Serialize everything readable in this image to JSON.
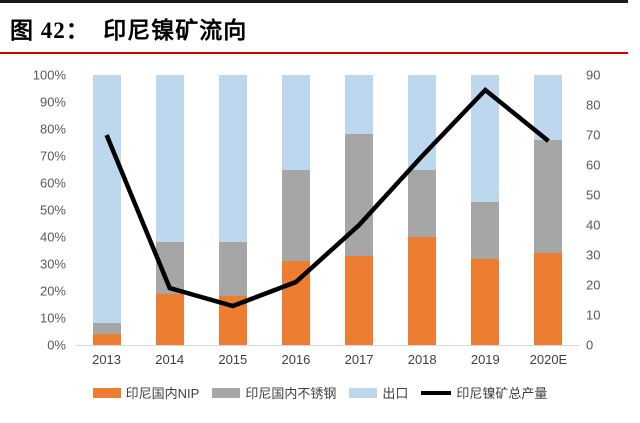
{
  "figure": {
    "title": "图 42：  印尼镍矿流向"
  },
  "chart_data": {
    "type": "combo_stacked_bar_line",
    "title": "印尼镍矿流向",
    "categories": [
      "2013",
      "2014",
      "2015",
      "2016",
      "2017",
      "2018",
      "2019",
      "2020E"
    ],
    "stacking": "percent",
    "bar_unit": "%",
    "bar_series": [
      {
        "key": "nip",
        "name": "印尼国内NIP",
        "color": "#ED7D31",
        "values": [
          4,
          19,
          18,
          31,
          33,
          40,
          32,
          34
        ]
      },
      {
        "key": "stainless",
        "name": "印尼国内不锈钢",
        "color": "#A6A6A6",
        "values": [
          4,
          19,
          20,
          34,
          45,
          25,
          21,
          42
        ]
      },
      {
        "key": "export",
        "name": "出口",
        "color": "#BDD7EE",
        "values": [
          92,
          62,
          62,
          35,
          22,
          35,
          47,
          24
        ]
      }
    ],
    "line_series": {
      "key": "total-output",
      "name": "印尼镍矿总产量",
      "color": "#000000",
      "axis": "right",
      "values": [
        70,
        19,
        13,
        21,
        40,
        63,
        85,
        68
      ]
    },
    "left_axis": {
      "min": 0,
      "max": 100,
      "ticks": [
        "100%",
        "90%",
        "80%",
        "70%",
        "60%",
        "50%",
        "40%",
        "30%",
        "20%",
        "10%",
        "0%"
      ]
    },
    "right_axis": {
      "min": 0,
      "max": 90,
      "ticks": [
        "90",
        "80",
        "70",
        "60",
        "50",
        "40",
        "30",
        "20",
        "10",
        "0"
      ]
    },
    "legend_position": "bottom",
    "grid": false
  },
  "styles": {
    "title_rule_top": "#1A1A1A",
    "title_rule_red": "#D40000",
    "axis_tick_color": "#595959",
    "x_label_color": "#404040",
    "axis_line_color": "#D9D9D9"
  }
}
